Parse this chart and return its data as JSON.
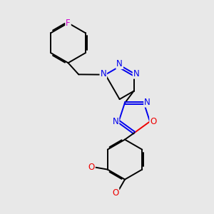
{
  "background_color": "#e8e8e8",
  "bond_color": "#000000",
  "N_color": "#0000ee",
  "O_color": "#ee0000",
  "F_color": "#cc00cc",
  "line_width": 1.4,
  "figsize": [
    3.0,
    3.0
  ],
  "dpi": 100,
  "xlim": [
    0,
    10
  ],
  "ylim": [
    0,
    10
  ]
}
